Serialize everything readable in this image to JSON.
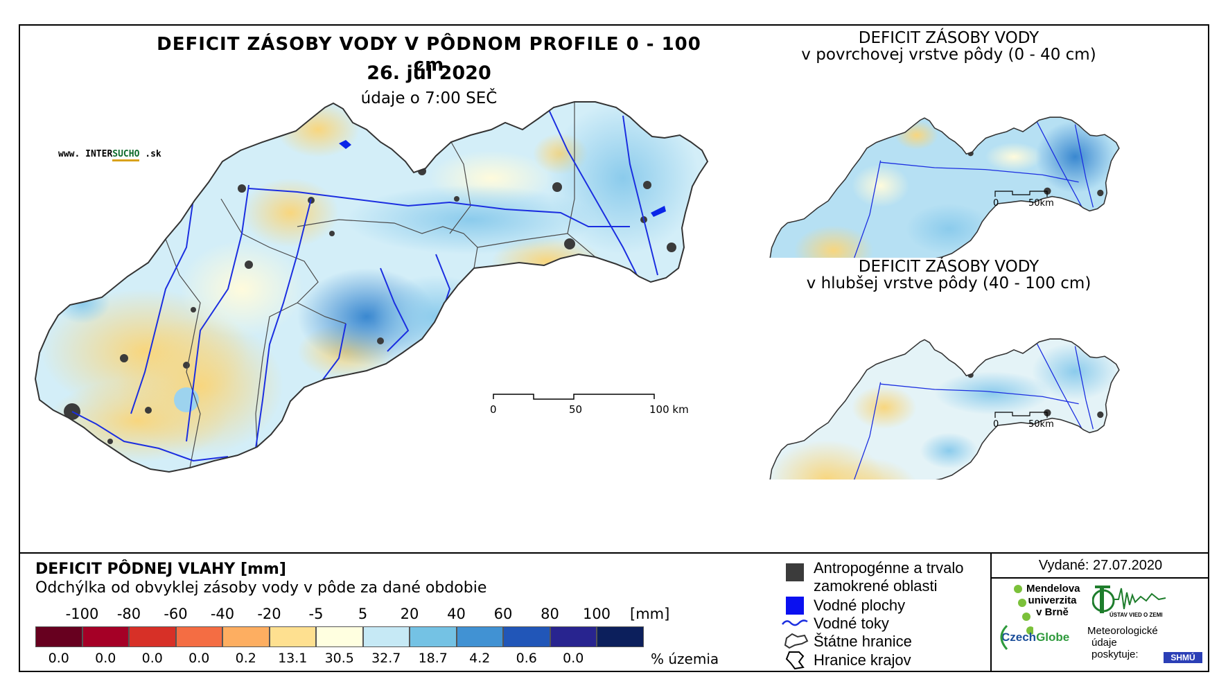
{
  "main_map": {
    "title": "DEFICIT ZÁSOBY VODY V PÔDNOM PROFILE 0 - 100 cm",
    "date": "26. júl 2020",
    "data_time": "údaje o 7:00 SEČ",
    "website": {
      "prefix": "www. INTER",
      "highlight": "SUCHO",
      "suffix": " .sk"
    },
    "scale_bar": [
      "0",
      "50",
      "100 km"
    ]
  },
  "inset_top": {
    "title": "DEFICIT ZÁSOBY VODY",
    "subtitle": "v povrchovej vrstve pôdy (0 - 40 cm)",
    "scale_bar": [
      "0",
      "50km"
    ]
  },
  "inset_bottom": {
    "title": "DEFICIT ZÁSOBY VODY",
    "subtitle": "v hlubšej vrstve pôdy (40 - 100 cm)",
    "scale_bar": [
      "0",
      "50km"
    ]
  },
  "legend": {
    "title": "DEFICIT PÔDNEJ VLAHY [mm]",
    "subtitle": "Odchýlka od obvyklej zásoby vody v pôde za dané obdobie",
    "class_labels": [
      "-100",
      "-80",
      "-60",
      "-40",
      "-20",
      "-5",
      "5",
      "20",
      "40",
      "60",
      "80",
      "100"
    ],
    "unit": "[mm]",
    "percentages": [
      "0.0",
      "0.0",
      "0.0",
      "0.0",
      "0.2",
      "13.1",
      "30.5",
      "32.7",
      "18.7",
      "4.2",
      "0.6",
      "0.0"
    ],
    "percent_unit": "% územia",
    "colors": [
      "#67001f",
      "#a50026",
      "#d73027",
      "#f46d43",
      "#fdae61",
      "#fee090",
      "#ffffe0",
      "#c6e9f5",
      "#74c2e4",
      "#4192d3",
      "#2156b8",
      "#28248f",
      "#0c1f5c"
    ]
  },
  "symbol_legend": [
    {
      "icon": "urban-area-icon",
      "line1": "Antropogénne a trvalo",
      "line2": "zamokrené oblasti"
    },
    {
      "icon": "water-body-icon",
      "line1": "Vodné plochy"
    },
    {
      "icon": "river-icon",
      "line1": "Vodné toky"
    },
    {
      "icon": "state-border-icon",
      "line1": "Štátne hranice"
    },
    {
      "icon": "region-border-icon",
      "line1": "Hranice krajov"
    }
  ],
  "credits": {
    "issued": "Vydané: 27.07.2020",
    "mendel": [
      "Mendelova",
      "univerzita",
      "v Brně"
    ],
    "czechglobe": {
      "a": "Czech",
      "b": "Globe"
    },
    "ustav": "ÚSTAV VIED O ZEMI",
    "meteo": [
      "Meteorologické",
      "údaje",
      "poskytuje:"
    ],
    "shmu": "SHMÚ"
  }
}
